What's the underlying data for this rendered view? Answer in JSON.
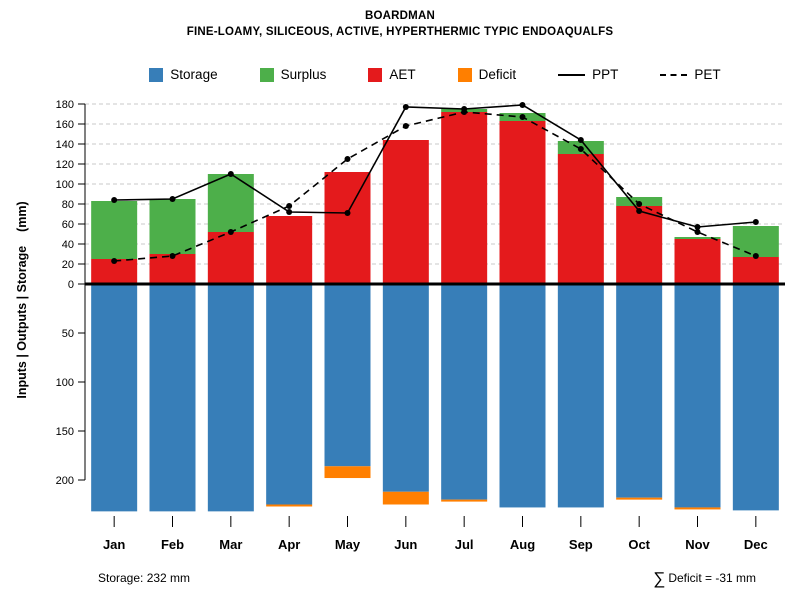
{
  "page": {
    "title": "BOARDMAN",
    "subtitle": "FINE-LOAMY, SILICEOUS, ACTIVE, HYPERTHERMIC TYPIC ENDOAQUALFS"
  },
  "legend": {
    "storage": "Storage",
    "surplus": "Surplus",
    "aet": "AET",
    "deficit": "Deficit",
    "ppt": "PPT",
    "pet": "PET"
  },
  "footer": {
    "storage_text": "Storage: 232 mm",
    "deficit_sigma": "∑",
    "deficit_text": "Deficit = -31 mm"
  },
  "colors": {
    "storage": "#377EB8",
    "surplus": "#4DAF4A",
    "aet": "#E41A1C",
    "deficit": "#FF7F00",
    "line": "#000000",
    "grid": "#C8C8C8"
  },
  "chart_data": {
    "type": "bar",
    "title": "BOARDMAN",
    "subtitle": "FINE-LOAMY, SILICEOUS, ACTIVE, HYPERTHERMIC TYPIC ENDOAQUALFS",
    "ylabel": "Inputs | Outputs | Storage    (mm)",
    "categories": [
      "Jan",
      "Feb",
      "Mar",
      "Apr",
      "May",
      "Jun",
      "Jul",
      "Aug",
      "Sep",
      "Oct",
      "Nov",
      "Dec"
    ],
    "upper_axis": {
      "min": 0,
      "max": 180,
      "step": 20,
      "unit": "mm",
      "grid": "dashed"
    },
    "lower_axis": {
      "min": 0,
      "max": 200,
      "step": 50,
      "unit": "mm",
      "grid": "none",
      "direction": "down"
    },
    "legend_position": "top",
    "series": [
      {
        "name": "AET",
        "render": "bar-up",
        "color": "#E41A1C",
        "values": [
          25,
          30,
          52,
          68,
          112,
          144,
          172,
          163,
          130,
          78,
          45,
          27
        ]
      },
      {
        "name": "Surplus",
        "render": "bar-up-stacked-on-AET",
        "color": "#4DAF4A",
        "values": [
          58,
          55,
          58,
          0,
          0,
          0,
          3,
          8,
          13,
          9,
          2,
          31
        ]
      },
      {
        "name": "Storage",
        "render": "bar-down",
        "color": "#377EB8",
        "values": [
          232,
          232,
          232,
          225,
          186,
          212,
          220,
          228,
          228,
          218,
          228,
          231
        ]
      },
      {
        "name": "Deficit",
        "render": "bar-down-stacked-on-Storage",
        "color": "#FF7F00",
        "values": [
          0,
          0,
          0,
          2,
          12,
          13,
          2,
          0,
          0,
          1,
          1,
          0
        ]
      },
      {
        "name": "PPT",
        "render": "line",
        "style": "solid",
        "color": "#000000",
        "marker": "dot",
        "values": [
          84,
          85,
          110,
          72,
          71,
          177,
          175,
          179,
          144,
          73,
          57,
          62
        ]
      },
      {
        "name": "PET",
        "render": "line",
        "style": "dashed",
        "color": "#000000",
        "marker": "dot",
        "values": [
          23,
          28,
          52,
          78,
          125,
          158,
          172,
          167,
          135,
          80,
          52,
          28
        ]
      }
    ],
    "annotations": {
      "storage_total": "Storage: 232 mm",
      "deficit_sum": "∑ Deficit = -31 mm"
    }
  }
}
